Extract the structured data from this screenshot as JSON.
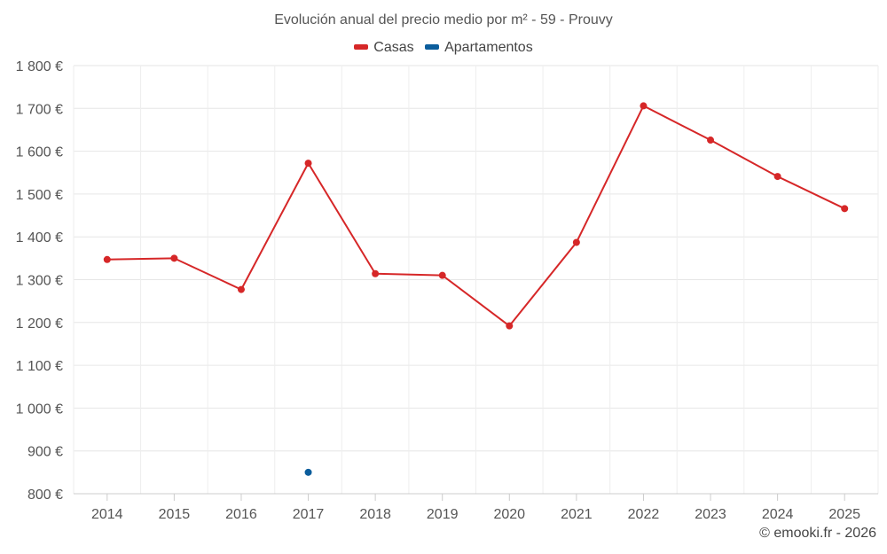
{
  "chart_data": {
    "type": "line",
    "title": "Evolución anual del precio medio por m² - 59 - Prouvy",
    "categories": [
      "2014",
      "2015",
      "2016",
      "2017",
      "2018",
      "2019",
      "2020",
      "2021",
      "2022",
      "2023",
      "2024",
      "2025"
    ],
    "series": [
      {
        "name": "Casas",
        "color": "#d62728",
        "values": [
          1347,
          1350,
          1277,
          1572,
          1314,
          1310,
          1192,
          1387,
          1706,
          1626,
          1541,
          1466
        ]
      },
      {
        "name": "Apartamentos",
        "color": "#0b5d9c",
        "values": [
          null,
          null,
          null,
          850,
          null,
          null,
          null,
          null,
          null,
          null,
          null,
          null
        ]
      }
    ],
    "ylim": [
      800,
      1800
    ],
    "yticks": [
      800,
      900,
      1000,
      1100,
      1200,
      1300,
      1400,
      1500,
      1600,
      1700,
      1800
    ],
    "ytick_labels": [
      "800 €",
      "900 €",
      "1 000 €",
      "1 100 €",
      "1 200 €",
      "1 300 €",
      "1 400 €",
      "1 500 €",
      "1 600 €",
      "1 700 €",
      "1 800 €"
    ],
    "xlabel": "",
    "ylabel": "",
    "grid": true,
    "legend": "top-center"
  },
  "credit": "© emooki.fr - 2026"
}
